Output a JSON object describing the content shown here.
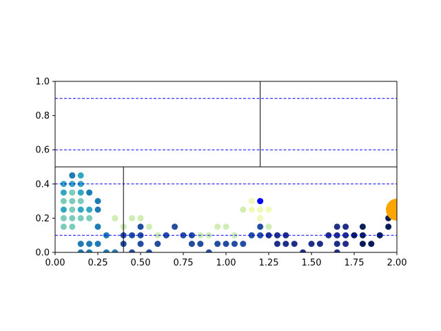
{
  "chart_data": {
    "type": "scatter",
    "title": "",
    "xlabel": "",
    "ylabel": "",
    "xlim": [
      0,
      2.0
    ],
    "ylim": [
      0,
      1.0
    ],
    "x_ticks": [
      "0.00",
      "0.25",
      "0.50",
      "0.75",
      "1.00",
      "1.25",
      "1.50",
      "1.75",
      "2.00"
    ],
    "y_ticks": [
      "0.0",
      "0.2",
      "0.4",
      "0.6",
      "0.8",
      "1.0"
    ],
    "grid": false,
    "colormap": "YlGnBu",
    "colors": {
      "reference_lines": "#0000ff",
      "highlight_point": "#0000ff",
      "marker_circle": "#ffa500",
      "partition_lines": "#000000"
    },
    "reference_lines_y": [
      0.1,
      0.4,
      0.6,
      0.9
    ],
    "partition": {
      "horizontal_y": 0.5,
      "upper_divider_x": 1.2,
      "lower_divider_x": 0.4
    },
    "highlight_point": {
      "x": 1.2,
      "y": 0.3
    },
    "marker_circle": {
      "x": 2.0,
      "y": 0.25
    },
    "series": [
      {
        "color_value": 0.1,
        "points": [
          [
            1.15,
            0.3
          ],
          [
            1.2,
            0.3
          ],
          [
            1.15,
            0.25
          ],
          [
            1.2,
            0.25
          ],
          [
            1.25,
            0.25
          ],
          [
            1.2,
            0.2
          ]
        ]
      },
      {
        "color_value": 0.22,
        "points": [
          [
            0.35,
            0.2
          ],
          [
            0.45,
            0.2
          ],
          [
            0.5,
            0.2
          ],
          [
            0.4,
            0.15
          ],
          [
            0.55,
            0.15
          ],
          [
            1.1,
            0.25
          ],
          [
            1.25,
            0.15
          ],
          [
            0.95,
            0.15
          ],
          [
            1.0,
            0.15
          ],
          [
            0.6,
            0.1
          ],
          [
            0.85,
            0.1
          ],
          [
            0.9,
            0.1
          ],
          [
            1.05,
            0.1
          ]
        ]
      },
      {
        "color_value": 0.38,
        "points": [
          [
            0.05,
            0.2
          ],
          [
            0.1,
            0.2
          ],
          [
            0.15,
            0.2
          ],
          [
            0.2,
            0.2
          ],
          [
            0.15,
            0.3
          ],
          [
            0.05,
            0.15
          ],
          [
            0.1,
            0.15
          ],
          [
            0.1,
            0.35
          ],
          [
            0.05,
            0.3
          ],
          [
            0.1,
            0.3
          ],
          [
            0.1,
            0.25
          ]
        ]
      },
      {
        "color_value": 0.55,
        "points": [
          [
            0.05,
            0.4
          ],
          [
            0.1,
            0.4
          ],
          [
            0.05,
            0.35
          ],
          [
            0.15,
            0.35
          ],
          [
            0.05,
            0.25
          ],
          [
            0.15,
            0.25
          ],
          [
            0.2,
            0.25
          ],
          [
            0.15,
            0.4
          ],
          [
            0.1,
            0.45
          ],
          [
            0.15,
            0.45
          ]
        ]
      },
      {
        "color_value": 0.68,
        "points": [
          [
            0.1,
            0.45
          ],
          [
            0.2,
            0.35
          ],
          [
            0.25,
            0.3
          ],
          [
            0.25,
            0.25
          ],
          [
            0.25,
            0.15
          ],
          [
            0.3,
            0.1
          ],
          [
            0.15,
            0.05
          ],
          [
            0.2,
            0.05
          ],
          [
            0.25,
            0.05
          ],
          [
            0.15,
            0.0
          ],
          [
            0.2,
            0.0
          ],
          [
            0.3,
            0.0
          ],
          [
            0.35,
            0.0
          ]
        ]
      },
      {
        "color_value": 0.8,
        "points": [
          [
            0.4,
            0.1
          ],
          [
            0.45,
            0.1
          ],
          [
            0.5,
            0.15
          ],
          [
            0.5,
            0.1
          ],
          [
            0.4,
            0.05
          ],
          [
            0.5,
            0.05
          ],
          [
            0.45,
            0.0
          ],
          [
            0.55,
            0.0
          ],
          [
            0.6,
            0.05
          ],
          [
            0.65,
            0.1
          ],
          [
            0.7,
            0.15
          ],
          [
            0.75,
            0.1
          ],
          [
            0.8,
            0.1
          ],
          [
            0.8,
            0.05
          ],
          [
            0.85,
            0.05
          ],
          [
            0.9,
            0.0
          ],
          [
            0.95,
            0.05
          ],
          [
            1.0,
            0.05
          ],
          [
            1.05,
            0.05
          ],
          [
            1.1,
            0.05
          ],
          [
            1.15,
            0.1
          ],
          [
            1.2,
            0.15
          ],
          [
            1.2,
            0.1
          ]
        ]
      },
      {
        "color_value": 0.9,
        "points": [
          [
            1.25,
            0.1
          ],
          [
            1.3,
            0.1
          ],
          [
            1.35,
            0.1
          ],
          [
            1.3,
            0.05
          ],
          [
            1.35,
            0.05
          ],
          [
            1.4,
            0.05
          ],
          [
            1.45,
            0.0
          ],
          [
            1.5,
            0.05
          ],
          [
            1.55,
            0.05
          ],
          [
            1.6,
            0.1
          ],
          [
            1.65,
            0.15
          ],
          [
            1.7,
            0.15
          ],
          [
            1.65,
            0.1
          ],
          [
            1.7,
            0.1
          ],
          [
            1.65,
            0.05
          ],
          [
            1.7,
            0.05
          ],
          [
            1.65,
            0.0
          ]
        ]
      },
      {
        "color_value": 1.0,
        "points": [
          [
            1.75,
            0.1
          ],
          [
            1.8,
            0.15
          ],
          [
            1.8,
            0.1
          ],
          [
            1.8,
            0.05
          ],
          [
            1.85,
            0.05
          ],
          [
            1.9,
            0.1
          ],
          [
            1.95,
            0.2
          ],
          [
            1.95,
            0.15
          ]
        ]
      }
    ]
  }
}
